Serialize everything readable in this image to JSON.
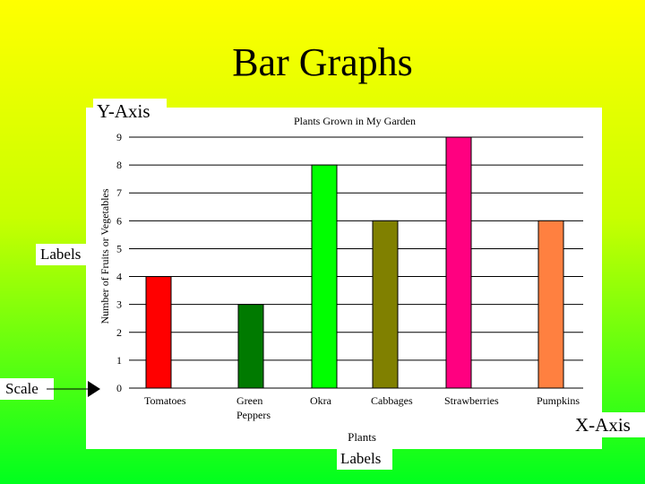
{
  "slide": {
    "title": "Bar Graphs"
  },
  "callouts": {
    "y_axis": "Y-Axis",
    "x_axis": "X-Axis",
    "labels_left": "Labels",
    "labels_bottom": "Labels",
    "scale": "Scale"
  },
  "chart_data": {
    "type": "bar",
    "title": "Plants Grown in My Garden",
    "xlabel": "Plants",
    "ylabel": "Number of Fruits or Vegetables",
    "categories": [
      "Tomatoes",
      "Green Peppers",
      "Okra",
      "Cabbages",
      "Strawberries",
      "Pumpkins"
    ],
    "values": [
      4,
      3,
      8,
      6,
      9,
      6
    ],
    "colors": [
      "#ff0000",
      "#007a00",
      "#00ff00",
      "#808000",
      "#ff0080",
      "#ff8040"
    ],
    "ylim": [
      0,
      9
    ],
    "yticks": [
      0,
      1,
      2,
      3,
      4,
      5,
      6,
      7,
      8,
      9
    ],
    "grid": true
  }
}
